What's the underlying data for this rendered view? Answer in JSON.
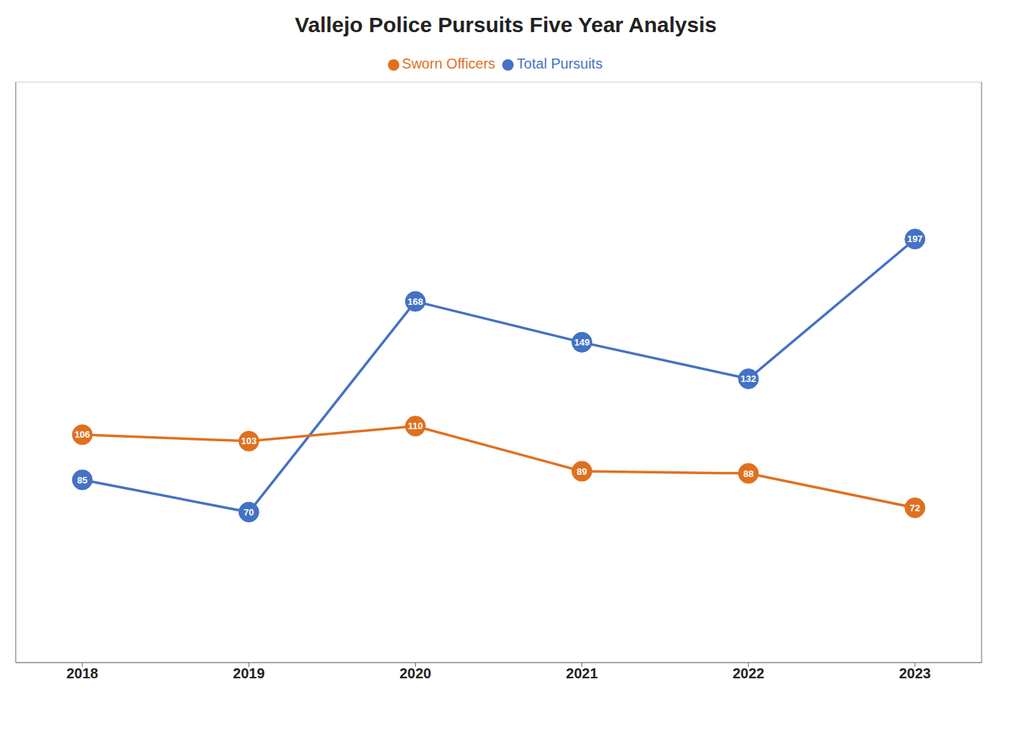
{
  "chart_data": {
    "type": "line",
    "title": "Vallejo Police Pursuits Five Year Analysis",
    "x": [
      2018,
      2019,
      2020,
      2021,
      2022,
      2023
    ],
    "series": [
      {
        "name": "Total Pursuits",
        "color": "#4472C4",
        "values": [
          85,
          70,
          168,
          149,
          132,
          197
        ],
        "marker": "circle"
      },
      {
        "name": "Sworn Officers",
        "color": "#E07020",
        "values": [
          106,
          103,
          110,
          89,
          88,
          72
        ],
        "marker": "circle"
      }
    ],
    "xlim": [
      2017.6,
      2023.4
    ],
    "xticks": [
      2018,
      2019,
      2020,
      2021,
      2022,
      2023
    ],
    "ylim": [
      0,
      270
    ],
    "yticks": [
      0,
      45,
      90,
      135,
      180,
      225,
      270
    ],
    "grid": true,
    "legend": "top",
    "data_labels": true,
    "tick_labels": "x"
  }
}
